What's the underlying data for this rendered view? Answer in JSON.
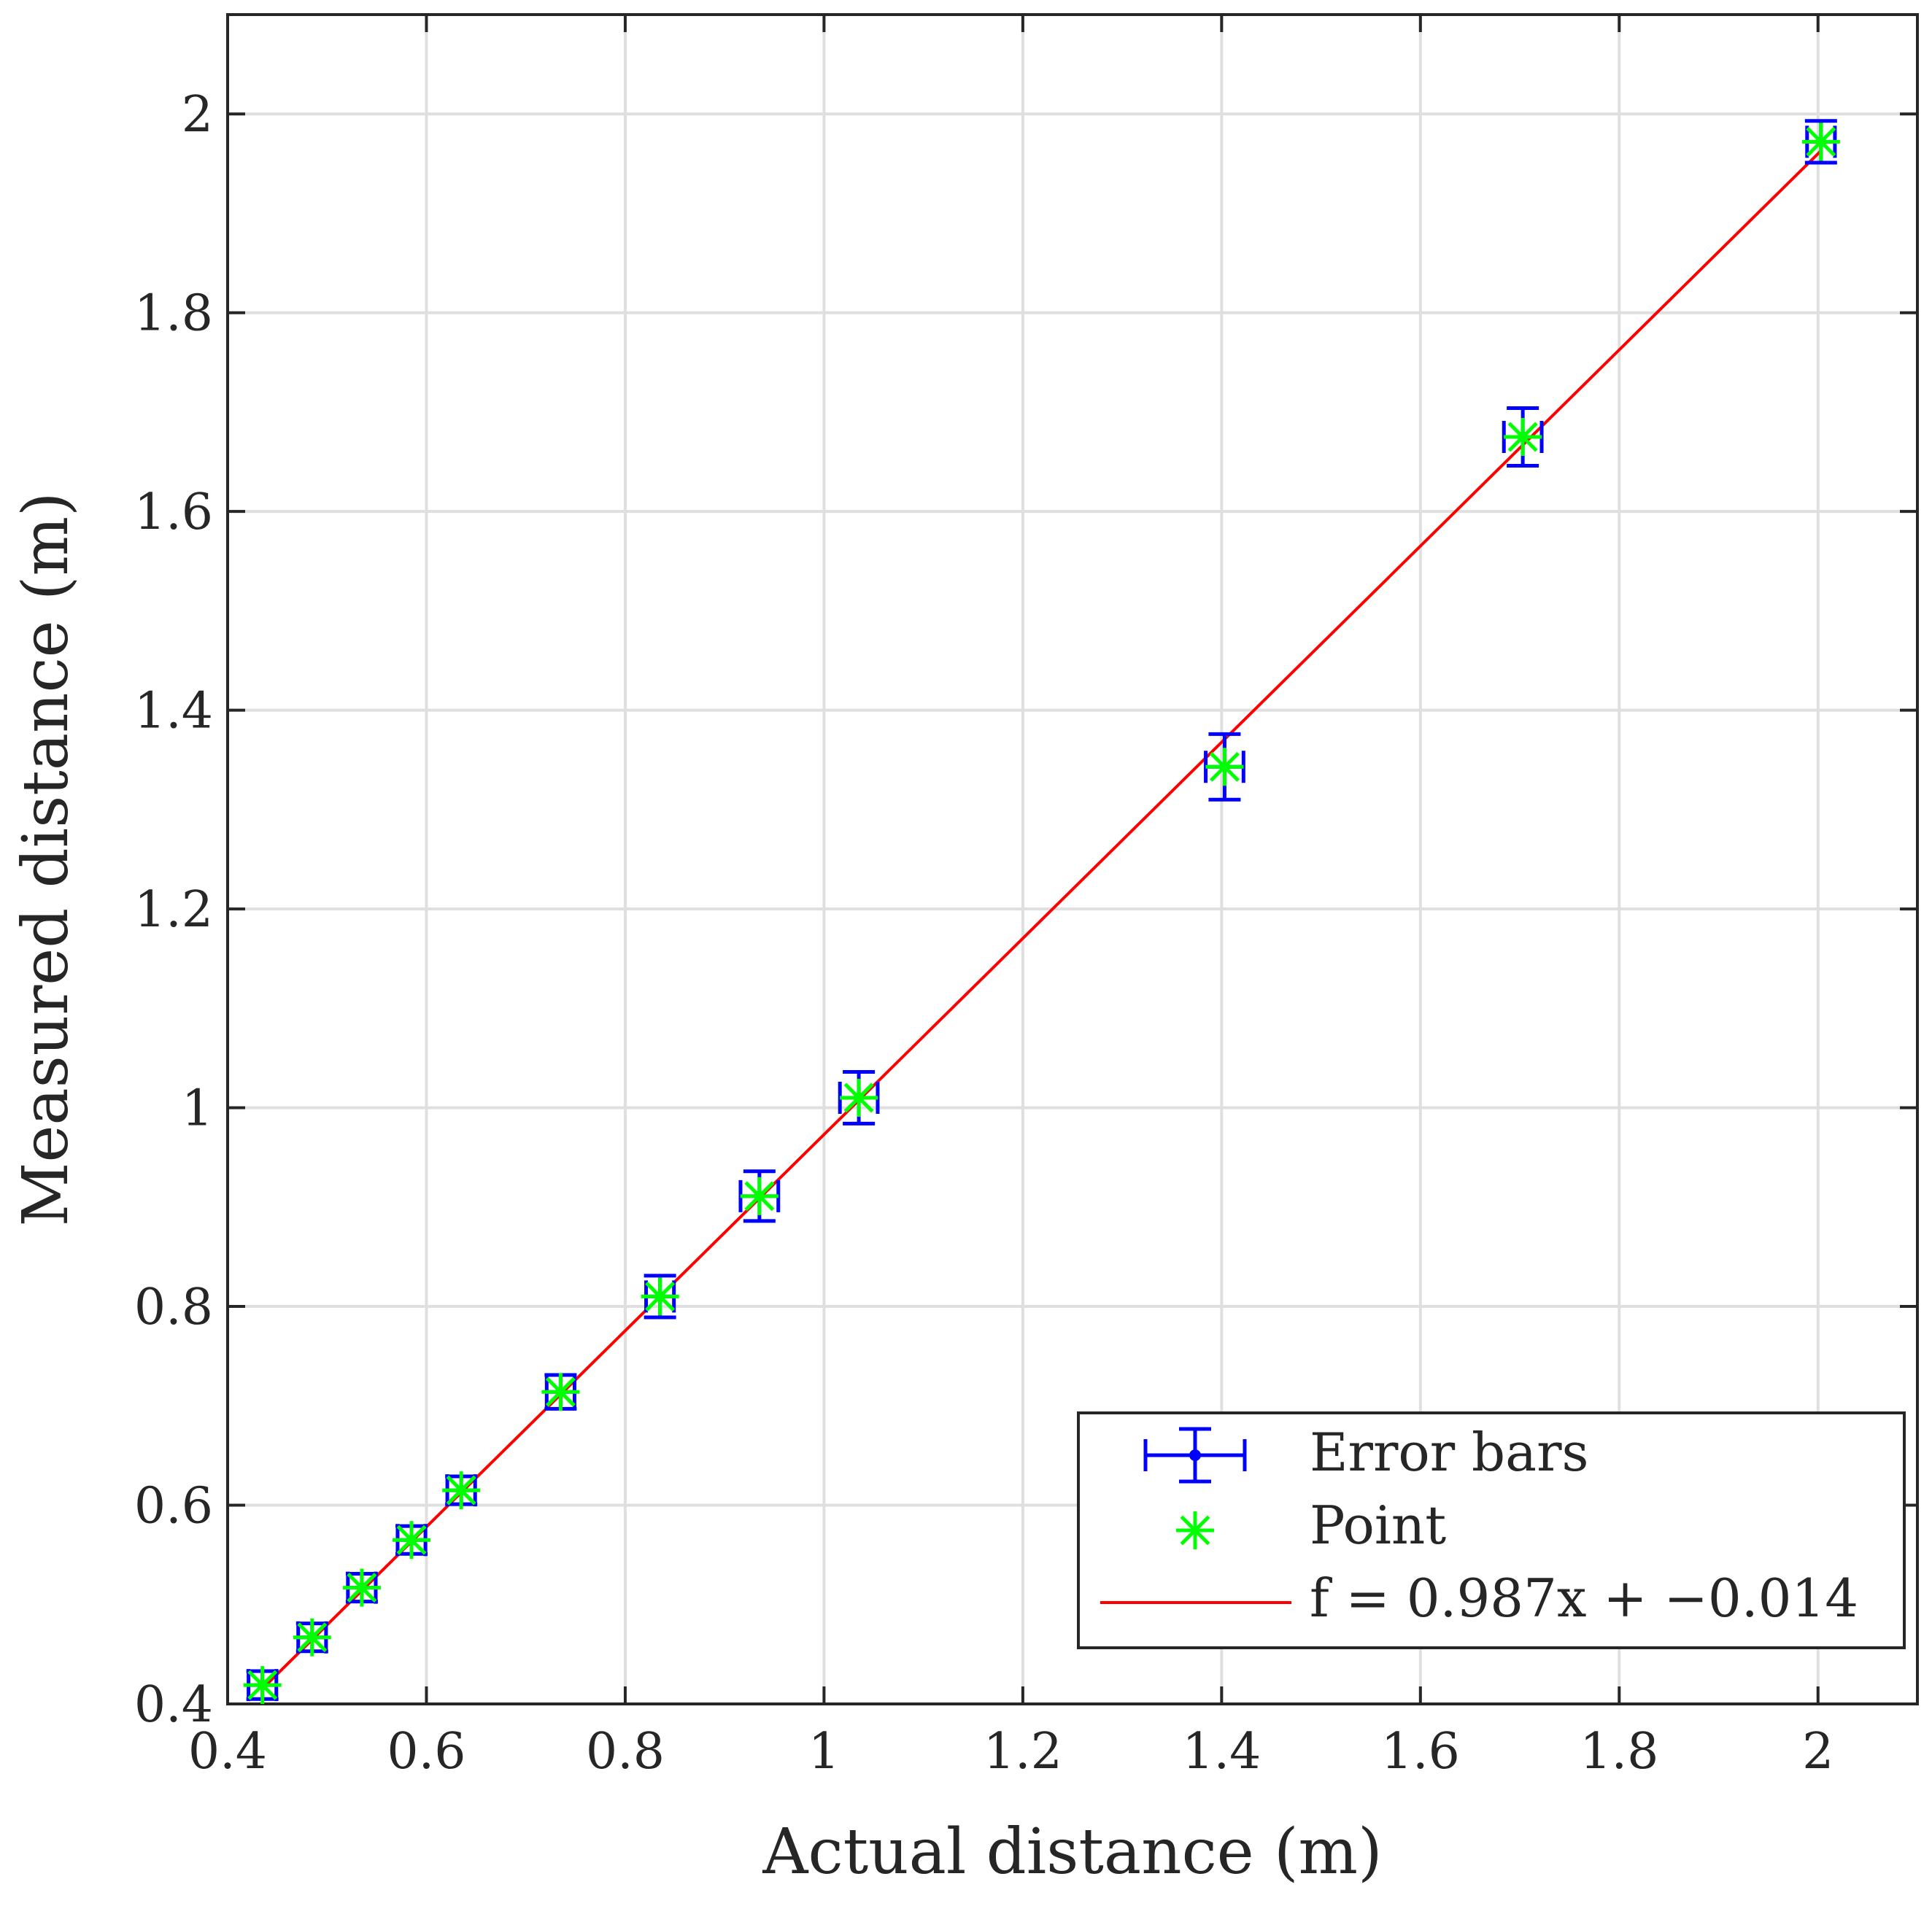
{
  "chart_data": {
    "type": "scatter",
    "title": "",
    "xlabel": "Actual distance (m)",
    "ylabel": "Measured distance (m)",
    "xlim": [
      0.4,
      2.1
    ],
    "ylim": [
      0.4,
      2.1
    ],
    "xticks": [
      0.4,
      0.6,
      0.8,
      1.0,
      1.2,
      1.4,
      1.6,
      1.8,
      2.0
    ],
    "xtick_labels": [
      "0.4",
      "0.6",
      "0.8",
      "1",
      "1.2",
      "1.4",
      "1.6",
      "1.8",
      "2"
    ],
    "yticks": [
      0.4,
      0.6,
      0.8,
      1.0,
      1.2,
      1.4,
      1.6,
      1.8,
      2.0
    ],
    "ytick_labels": [
      "0.4",
      "0.6",
      "0.8",
      "1",
      "1.2",
      "1.4",
      "1.6",
      "1.8",
      "2"
    ],
    "grid": true,
    "legend_position": "bottom-right",
    "series": [
      {
        "name": "Error bars",
        "kind": "errorbar",
        "color": "#0000ff",
        "x": [
          0.435,
          0.485,
          0.535,
          0.585,
          0.635,
          0.735,
          0.835,
          0.935,
          1.035,
          1.403,
          1.703,
          2.003
        ],
        "y": [
          0.419,
          0.467,
          0.517,
          0.565,
          0.615,
          0.714,
          0.81,
          0.911,
          1.01,
          1.343,
          1.675,
          1.972
        ],
        "y_err": [
          0.014,
          0.014,
          0.014,
          0.014,
          0.014,
          0.017,
          0.021,
          0.025,
          0.026,
          0.033,
          0.029,
          0.021
        ],
        "x_err": [
          0.014,
          0.014,
          0.014,
          0.014,
          0.014,
          0.014,
          0.014,
          0.019,
          0.019,
          0.019,
          0.019,
          0.014
        ]
      },
      {
        "name": "Point",
        "kind": "marker",
        "marker": "asterisk",
        "color": "#00ff00",
        "x": [
          0.435,
          0.485,
          0.535,
          0.585,
          0.635,
          0.735,
          0.835,
          0.935,
          1.035,
          1.403,
          1.703,
          2.003
        ],
        "y": [
          0.419,
          0.467,
          0.517,
          0.565,
          0.615,
          0.714,
          0.81,
          0.911,
          1.01,
          1.343,
          1.675,
          1.972
        ]
      },
      {
        "name": "f = 0.987x + −0.014",
        "kind": "line",
        "color": "#ff0000",
        "slope": 0.987,
        "intercept": -0.014,
        "x_range": [
          0.435,
          2.003
        ]
      }
    ]
  }
}
